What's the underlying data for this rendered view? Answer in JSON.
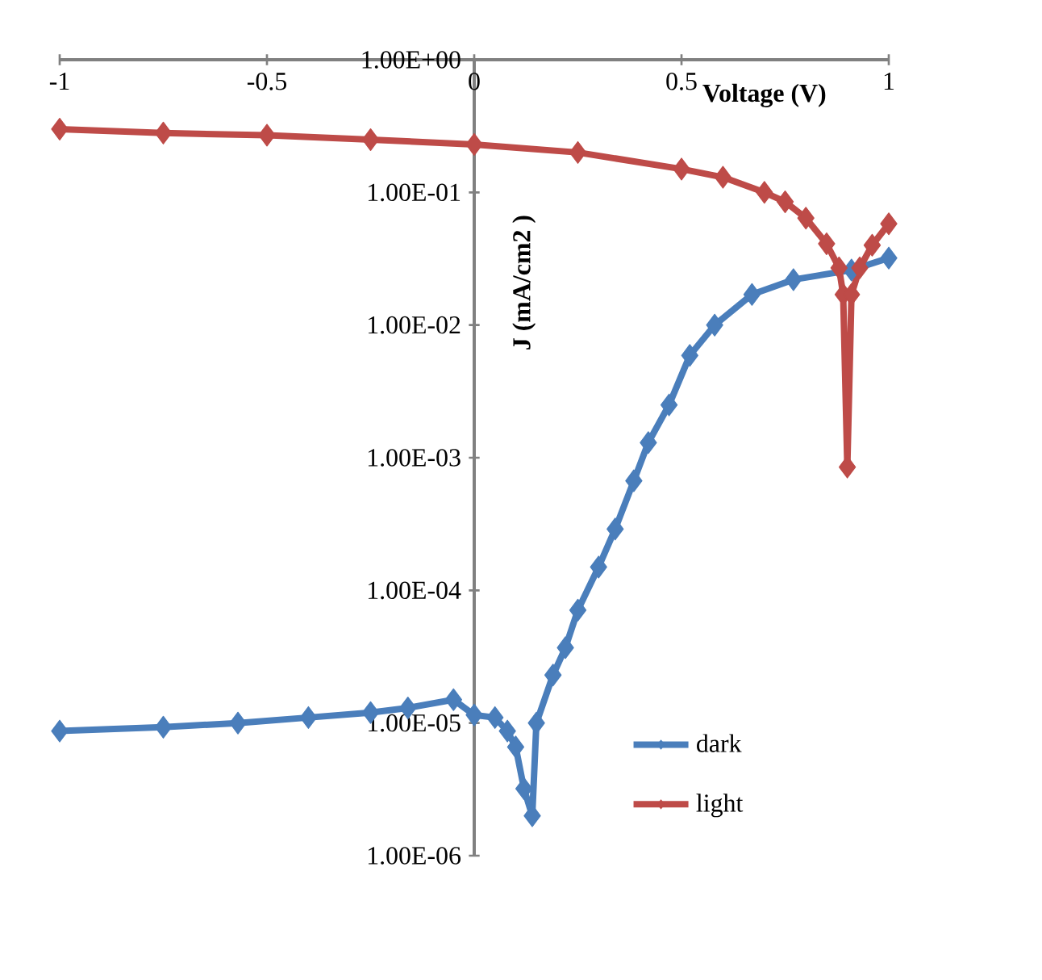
{
  "chart_data": {
    "type": "line",
    "xlabel": "Voltage (V)",
    "ylabel": "J (mA/cm2 )",
    "log": "y",
    "marker": "diamond",
    "line_style": "solid",
    "legend": "bottom right",
    "xlim": [
      -1,
      1
    ],
    "xticks": [
      -1,
      -0.5,
      0,
      0.5,
      1
    ],
    "ylim": [
      1e-06,
      1
    ],
    "yticks": [
      {
        "value": 1e-06,
        "label": "1.00E-06"
      },
      {
        "value": 1e-05,
        "label": "1.00E-05"
      },
      {
        "value": 0.0001,
        "label": "1.00E-04"
      },
      {
        "value": 0.001,
        "label": "1.00E-03"
      },
      {
        "value": 0.01,
        "label": "1.00E-02"
      },
      {
        "value": 0.1,
        "label": "1.00E-01"
      },
      {
        "value": 1,
        "label": "1.00E+00"
      }
    ],
    "series": [
      {
        "name": "dark",
        "color": "#4a7ebb",
        "x": [
          -1,
          -0.75,
          -0.57,
          -0.4,
          -0.25,
          -0.16,
          -0.05,
          0,
          0.05,
          0.08,
          0.1,
          0.12,
          0.14,
          0.15,
          0.19,
          0.22,
          0.25,
          0.3,
          0.34,
          0.385,
          0.42,
          0.47,
          0.52,
          0.58,
          0.67,
          0.77,
          0.91,
          1.0
        ],
        "values": [
          8.7e-06,
          9.3e-06,
          1e-05,
          1.1e-05,
          1.2e-05,
          1.3e-05,
          1.5e-05,
          1.15e-05,
          1.1e-05,
          8.7e-06,
          6.6e-06,
          3.2e-06,
          2e-06,
          1e-05,
          2.3e-05,
          3.7e-05,
          7.1e-05,
          0.00015,
          0.00029,
          0.00067,
          0.0013,
          0.0025,
          0.0059,
          0.01,
          0.017,
          0.022,
          0.026,
          0.032
        ]
      },
      {
        "name": "light",
        "color": "#be4b48",
        "x": [
          -1,
          -0.75,
          -0.5,
          -0.25,
          0,
          0.25,
          0.5,
          0.6,
          0.7,
          0.75,
          0.8,
          0.85,
          0.88,
          0.89,
          0.9,
          0.91,
          0.93,
          0.96,
          1.0
        ],
        "values": [
          0.3,
          0.28,
          0.27,
          0.25,
          0.23,
          0.2,
          0.15,
          0.13,
          0.1,
          0.085,
          0.064,
          0.041,
          0.027,
          0.017,
          0.00085,
          0.017,
          0.027,
          0.04,
          0.058
        ]
      }
    ]
  }
}
